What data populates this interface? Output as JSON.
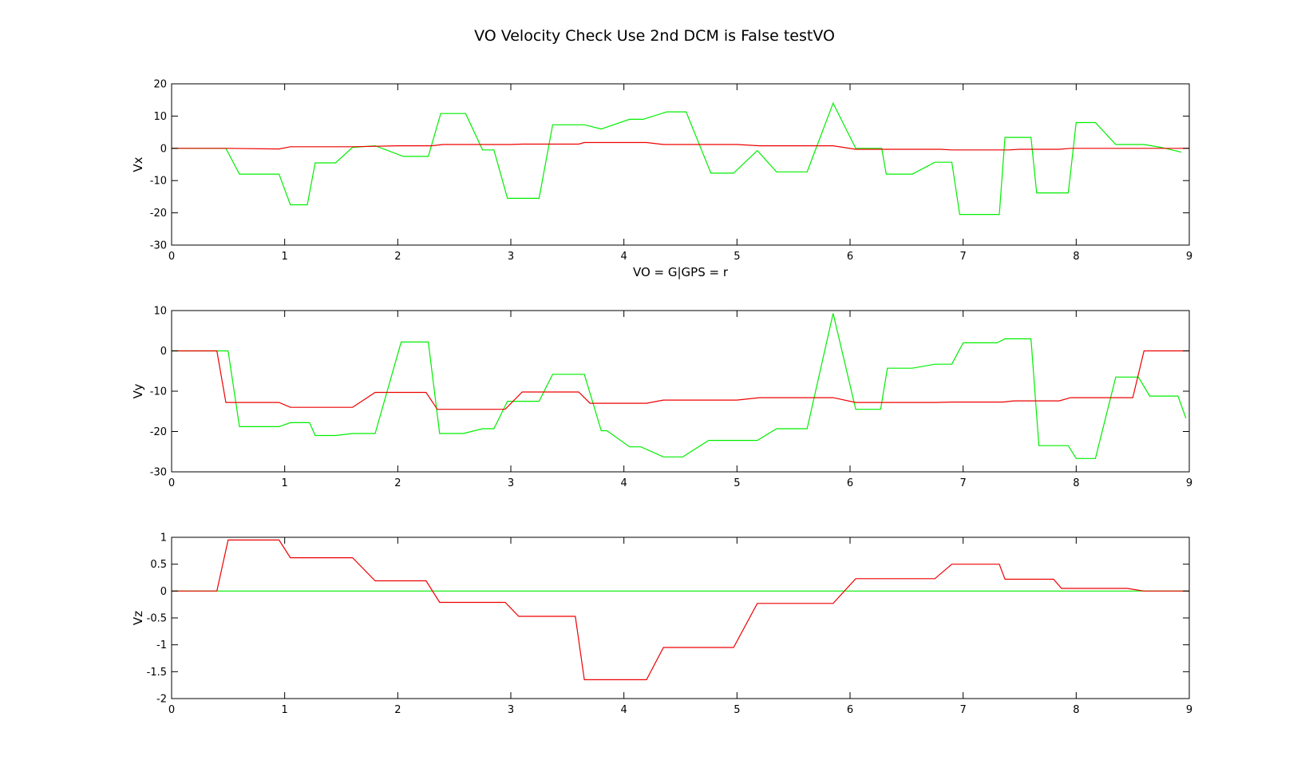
{
  "figure": {
    "title": "VO Velocity Check Use 2nd DCM is False testVO"
  },
  "colors": {
    "vo": "#00ee00",
    "gps": "#ee0000",
    "axes": "#000000"
  },
  "chart_data": [
    {
      "type": "line",
      "ylabel": "Vx",
      "xlabel": "VO = G|GPS = r",
      "xlim": [
        0,
        9
      ],
      "ylim": [
        -30,
        20
      ],
      "xticks": [
        0,
        1,
        2,
        3,
        4,
        5,
        6,
        7,
        8,
        9
      ],
      "yticks": [
        -30,
        -20,
        -10,
        0,
        10,
        20
      ],
      "grid": false,
      "series": [
        {
          "color": "green",
          "x": [
            0,
            0.48,
            0.6,
            0.95,
            1.05,
            1.2,
            1.27,
            1.45,
            1.6,
            1.8,
            2.05,
            2.27,
            2.38,
            2.6,
            2.75,
            2.85,
            2.97,
            3.25,
            3.37,
            3.65,
            3.8,
            4.05,
            4.17,
            4.38,
            4.55,
            4.77,
            4.97,
            5.18,
            5.35,
            5.62,
            5.85,
            6.05,
            6.28,
            6.32,
            6.55,
            6.75,
            6.9,
            6.97,
            7.32,
            7.37,
            7.6,
            7.65,
            7.93,
            8.0,
            8.17,
            8.35,
            8.6,
            8.75,
            8.93
          ],
          "y": [
            0,
            0,
            -8,
            -8,
            -17.5,
            -17.5,
            -4.5,
            -4.5,
            0.3,
            0.8,
            -2.5,
            -2.5,
            10.8,
            10.8,
            -0.5,
            -0.5,
            -15.5,
            -15.5,
            7.3,
            7.3,
            6,
            9,
            9,
            11.3,
            11.3,
            -7.7,
            -7.7,
            -0.7,
            -7.3,
            -7.3,
            14,
            0,
            0,
            -8,
            -8,
            -4.3,
            -4.3,
            -20.5,
            -20.5,
            3.4,
            3.4,
            -13.8,
            -13.8,
            8,
            8,
            1.2,
            1.2,
            0.3,
            -1.2
          ]
        },
        {
          "color": "red",
          "x": [
            0,
            0.5,
            0.95,
            1.05,
            1.6,
            2.0,
            2.3,
            2.4,
            3.0,
            3.1,
            3.6,
            3.65,
            4.2,
            4.35,
            5.0,
            5.2,
            5.85,
            6.05,
            6.8,
            6.9,
            7.4,
            7.5,
            7.85,
            7.95,
            8.6,
            9.0
          ],
          "y": [
            0,
            0,
            -0.2,
            0.5,
            0.5,
            0.8,
            0.8,
            1.2,
            1.2,
            1.3,
            1.3,
            1.8,
            1.8,
            1.2,
            1.2,
            0.8,
            0.8,
            -0.3,
            -0.3,
            -0.5,
            -0.5,
            -0.3,
            -0.3,
            0,
            0,
            0
          ]
        }
      ]
    },
    {
      "type": "line",
      "ylabel": "Vy",
      "xlabel": "",
      "xlim": [
        0,
        9
      ],
      "ylim": [
        -30,
        10
      ],
      "xticks": [
        0,
        1,
        2,
        3,
        4,
        5,
        6,
        7,
        8,
        9
      ],
      "yticks": [
        -30,
        -20,
        -10,
        0,
        10
      ],
      "grid": false,
      "series": [
        {
          "color": "green",
          "x": [
            0,
            0.5,
            0.6,
            0.95,
            1.05,
            1.22,
            1.27,
            1.45,
            1.6,
            1.8,
            2.03,
            2.27,
            2.37,
            2.58,
            2.75,
            2.85,
            2.97,
            3.25,
            3.37,
            3.65,
            3.8,
            3.85,
            4.05,
            4.15,
            4.35,
            4.52,
            4.75,
            4.97,
            5.18,
            5.35,
            5.62,
            5.85,
            6.05,
            6.27,
            6.33,
            6.55,
            6.75,
            6.9,
            7.0,
            7.3,
            7.37,
            7.6,
            7.67,
            7.93,
            8.0,
            8.17,
            8.35,
            8.55,
            8.65,
            8.9,
            8.97
          ],
          "y": [
            0,
            0,
            -18.8,
            -18.8,
            -17.8,
            -17.8,
            -21,
            -21,
            -20.5,
            -20.5,
            2.2,
            2.2,
            -20.5,
            -20.5,
            -19.3,
            -19.3,
            -12.5,
            -12.5,
            -5.8,
            -5.8,
            -19.8,
            -19.8,
            -23.8,
            -23.8,
            -26.3,
            -26.3,
            -22.2,
            -22.2,
            -22.2,
            -19.3,
            -19.3,
            9.3,
            -14.5,
            -14.5,
            -4.3,
            -4.3,
            -3.3,
            -3.3,
            2,
            2,
            3,
            3,
            -23.5,
            -23.5,
            -26.7,
            -26.7,
            -6.5,
            -6.5,
            -11.2,
            -11.2,
            -16.7
          ]
        },
        {
          "color": "red",
          "x": [
            0,
            0.4,
            0.48,
            0.95,
            1.05,
            1.6,
            1.8,
            2.25,
            2.35,
            2.95,
            3.1,
            3.6,
            3.7,
            4.2,
            4.35,
            5.0,
            5.2,
            5.85,
            6.05,
            6.75,
            6.9,
            7.35,
            7.45,
            7.85,
            7.95,
            8.5,
            8.6,
            9.0
          ],
          "y": [
            0,
            0,
            -12.8,
            -12.8,
            -14,
            -14,
            -10.3,
            -10.3,
            -14.5,
            -14.5,
            -10.2,
            -10.2,
            -13,
            -13,
            -12.2,
            -12.2,
            -11.6,
            -11.6,
            -12.8,
            -12.8,
            -12.7,
            -12.7,
            -12.4,
            -12.4,
            -11.6,
            -11.6,
            0,
            0
          ]
        }
      ]
    },
    {
      "type": "line",
      "ylabel": "Vz",
      "xlabel": "",
      "xlim": [
        0,
        9
      ],
      "ylim": [
        -2,
        1
      ],
      "xticks": [
        0,
        1,
        2,
        3,
        4,
        5,
        6,
        7,
        8,
        9
      ],
      "yticks": [
        -2,
        -1.5,
        -1,
        -0.5,
        0,
        0.5,
        1
      ],
      "grid": false,
      "series": [
        {
          "color": "green",
          "x": [
            0,
            9.0
          ],
          "y": [
            0,
            0
          ]
        },
        {
          "color": "red",
          "x": [
            0,
            0.4,
            0.5,
            0.95,
            1.05,
            1.6,
            1.8,
            2.25,
            2.37,
            2.95,
            3.07,
            3.57,
            3.65,
            4.2,
            4.35,
            4.97,
            5.18,
            5.85,
            6.05,
            6.75,
            6.9,
            7.32,
            7.37,
            7.8,
            7.87,
            8.45,
            8.6,
            9.0
          ],
          "y": [
            0,
            0,
            0.95,
            0.95,
            0.62,
            0.62,
            0.19,
            0.19,
            -0.21,
            -0.21,
            -0.47,
            -0.47,
            -1.65,
            -1.65,
            -1.05,
            -1.05,
            -0.23,
            -0.23,
            0.23,
            0.23,
            0.5,
            0.5,
            0.22,
            0.22,
            0.05,
            0.05,
            0,
            0
          ]
        }
      ]
    }
  ]
}
